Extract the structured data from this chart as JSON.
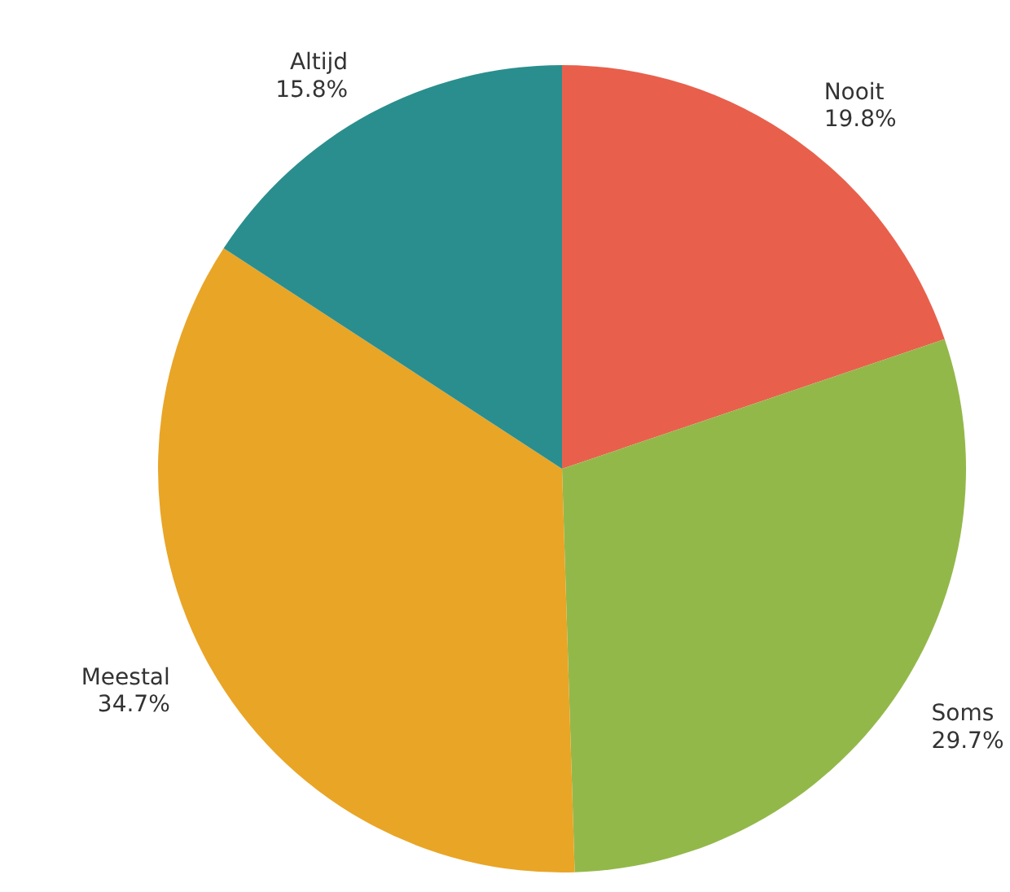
{
  "chart_data": {
    "type": "pie",
    "categories": [
      "Nooit",
      "Soms",
      "Meestal",
      "Altijd"
    ],
    "values": [
      19.8,
      29.7,
      34.7,
      15.8
    ],
    "colors": [
      "#e8604c",
      "#93b84a",
      "#e9a526",
      "#2a8e8e"
    ],
    "value_labels": [
      "19.8%",
      "29.7%",
      "34.7%",
      "15.8%"
    ]
  }
}
